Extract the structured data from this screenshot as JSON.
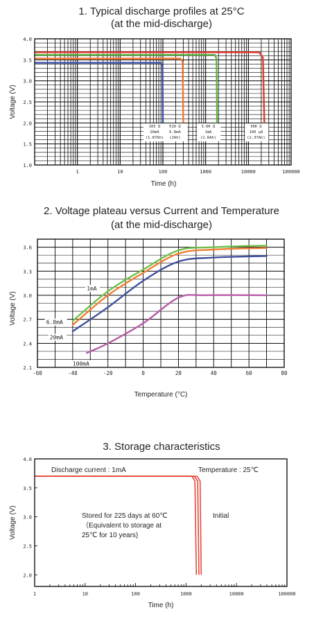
{
  "chart_data": [
    {
      "type": "line",
      "title_line1": "1. Typical discharge profiles at 25°C",
      "title_line2": "(at  the mid-discharge)",
      "xlabel": "Time (h)",
      "ylabel": "Voltage (V)",
      "xscale": "log",
      "xlim": [
        0.1,
        100000
      ],
      "ylim": [
        1.0,
        4.0
      ],
      "x_ticks": [
        "1",
        "10",
        "100",
        "1000",
        "10000",
        "100000"
      ],
      "y_ticks": [
        "1.0",
        "1.5",
        "2.0",
        "2.5",
        "3.0",
        "3.5",
        "4.0"
      ],
      "grid": true,
      "series": [
        {
          "color": "#3b4fa8",
          "points": [
            [
              0.1,
              3.43
            ],
            [
              90,
              3.43
            ],
            [
              98,
              3.35
            ],
            [
              100,
              2.0
            ]
          ]
        },
        {
          "color": "#f0772f",
          "points": [
            [
              0.1,
              3.53
            ],
            [
              260,
              3.53
            ],
            [
              290,
              3.45
            ],
            [
              300,
              2.0
            ]
          ]
        },
        {
          "color": "#5fb443",
          "points": [
            [
              0.1,
              3.62
            ],
            [
              1650,
              3.62
            ],
            [
              1800,
              3.52
            ],
            [
              1850,
              2.0
            ]
          ]
        },
        {
          "color": "#e23b2e",
          "points": [
            [
              0.1,
              3.68
            ],
            [
              18000,
              3.68
            ],
            [
              22000,
              3.55
            ],
            [
              23700,
              2.0
            ]
          ]
        }
      ],
      "annotations": [
        {
          "x": 100,
          "lines": [
            "165 Ω",
            "20mA",
            "(1.87Ah)"
          ]
        },
        {
          "x": 300,
          "lines": [
            "510 Ω",
            "6.8mA",
            "(2Ah)"
          ]
        },
        {
          "x": 1800,
          "lines": [
            "3.6K Ω",
            "1mA",
            "(2.6Ah)"
          ]
        },
        {
          "x": 23700,
          "lines": [
            "36K Ω",
            "100 μA",
            "(2.37Ah)"
          ]
        }
      ]
    },
    {
      "type": "line",
      "title_line1": "2. Voltage plateau versus Current and Temperature",
      "title_line2": "(at the mid-discharge)",
      "xlabel": "Temperature (°C)",
      "ylabel": "Voltage (V)",
      "xlim": [
        -60,
        80
      ],
      "ylim": [
        2.1,
        3.7
      ],
      "x_ticks": [
        "-60",
        "-40",
        "-20",
        "0",
        "20",
        "40",
        "60",
        "80"
      ],
      "y_ticks": [
        "2.1",
        "2.4",
        "2.7",
        "3.0",
        "3.3",
        "3.6"
      ],
      "grid": true,
      "series": [
        {
          "name": "1mA",
          "color": "#6fbf4a",
          "points": [
            [
              -40,
              2.68
            ],
            [
              -20,
              3.05
            ],
            [
              0,
              3.32
            ],
            [
              20,
              3.56
            ],
            [
              40,
              3.6
            ],
            [
              70,
              3.62
            ]
          ]
        },
        {
          "name": "6.8mA",
          "color": "#ef7d32",
          "points": [
            [
              -40,
              2.63
            ],
            [
              -20,
              3.0
            ],
            [
              0,
              3.28
            ],
            [
              20,
              3.52
            ],
            [
              40,
              3.57
            ],
            [
              70,
              3.59
            ]
          ]
        },
        {
          "name": "20mA",
          "color": "#3e4f9c",
          "points": [
            [
              -40,
              2.55
            ],
            [
              -20,
              2.85
            ],
            [
              0,
              3.18
            ],
            [
              20,
              3.42
            ],
            [
              40,
              3.47
            ],
            [
              70,
              3.49
            ]
          ]
        },
        {
          "name": "100mA",
          "color": "#b55aa6",
          "points": [
            [
              -32,
              2.28
            ],
            [
              -20,
              2.4
            ],
            [
              0,
              2.65
            ],
            [
              20,
              2.97
            ],
            [
              35,
              3.0
            ],
            [
              70,
              3.0
            ]
          ]
        }
      ],
      "labels": [
        {
          "series": "1mA",
          "x": -32,
          "y": 3.06
        },
        {
          "series": "6.8mA",
          "x": -55,
          "y": 2.64
        },
        {
          "series": "20mA",
          "x": -53,
          "y": 2.45
        },
        {
          "series": "100mA",
          "x": -40,
          "y": 2.12
        }
      ]
    },
    {
      "type": "line",
      "title": "3. Storage characteristics",
      "xlabel": "Time (h)",
      "ylabel": "Voltage (V)",
      "xscale": "log",
      "xlim": [
        1,
        100000
      ],
      "ylim": [
        1.8,
        4.0
      ],
      "x_ticks": [
        "1",
        "10",
        "100",
        "1000",
        "10000",
        "100000"
      ],
      "y_ticks": [
        "2.0",
        "2.5",
        "3.0",
        "3.5",
        "4.0"
      ],
      "grid": false,
      "series": [
        {
          "color": "#e2483c",
          "points": [
            [
              1,
              3.7
            ],
            [
              1300,
              3.7
            ],
            [
              1500,
              3.62
            ],
            [
              1600,
              2.0
            ]
          ]
        },
        {
          "color": "#e2483c",
          "points": [
            [
              1,
              3.7
            ],
            [
              1450,
              3.7
            ],
            [
              1700,
              3.62
            ],
            [
              1800,
              2.0
            ]
          ]
        },
        {
          "color": "#e2483c",
          "points": [
            [
              1,
              3.7
            ],
            [
              1650,
              3.7
            ],
            [
              1900,
              3.62
            ],
            [
              2000,
              2.0
            ]
          ]
        }
      ],
      "annotations": {
        "discharge_current": "Discharge current : 1mA",
        "temperature": "Temperature : 25℃",
        "stored_line1": "Stored for 225 days at 60℃",
        "stored_line2": "（Equivalent to storage at",
        "stored_line3": "25℃ for 10 years)",
        "initial": "Initial"
      }
    }
  ]
}
